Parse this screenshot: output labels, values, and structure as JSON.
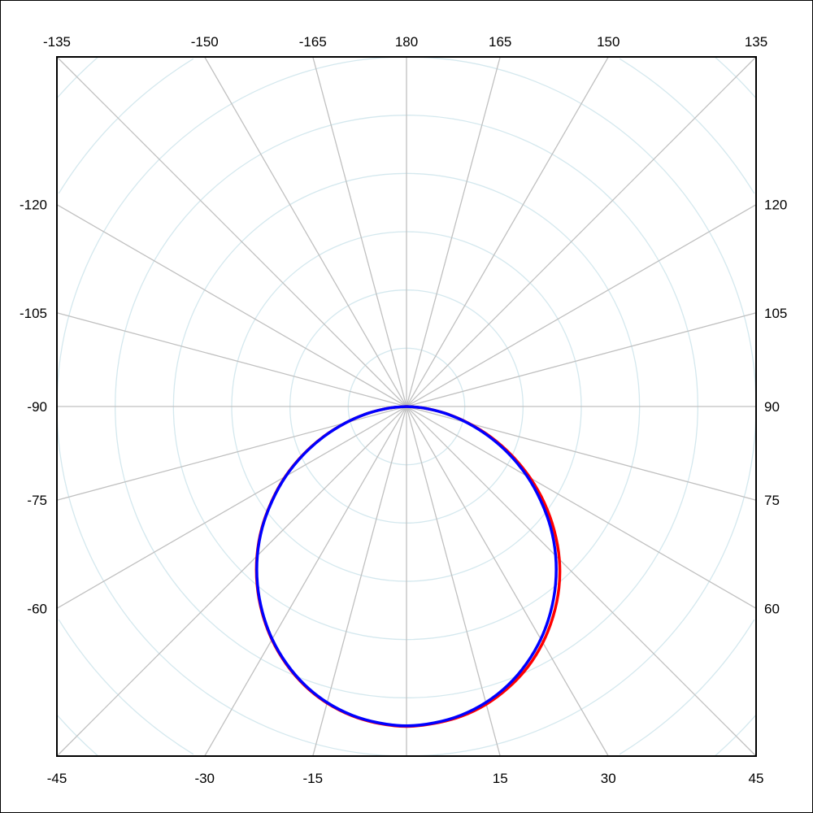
{
  "chart_data": {
    "type": "line",
    "subtype": "polar",
    "title": "",
    "angle_zero": "bottom",
    "angle_direction": "counterclockwise to the right (90 at right, -90 at left, 180 at top)",
    "angle_step": 15,
    "angle_tick_labels": {
      "top": [
        "-135",
        "-150",
        "-165",
        "180",
        "165",
        "150",
        "135"
      ],
      "left": [
        "-120",
        "-105",
        "-90",
        "-75",
        "-60"
      ],
      "right": [
        "120",
        "105",
        "90",
        "75",
        "60"
      ],
      "bottom": [
        "-45",
        "-30",
        "-15",
        "15",
        "30",
        "45"
      ]
    },
    "radial_range": [
      0,
      6
    ],
    "radial_grid_step": 1,
    "radial_tick_labels": false,
    "grid": true,
    "colors": {
      "angular_grid": "#c0c0c0",
      "radial_grid": "#d4e8ee",
      "frame": "#000000"
    },
    "angles": [
      -90,
      -85,
      -80,
      -75,
      -70,
      -65,
      -60,
      -55,
      -50,
      -45,
      -40,
      -35,
      -30,
      -25,
      -20,
      -15,
      -10,
      -5,
      0,
      5,
      10,
      15,
      20,
      25,
      30,
      35,
      40,
      45,
      50,
      55,
      60,
      65,
      70,
      75,
      80,
      85,
      90
    ],
    "series": [
      {
        "color": "#ff0000",
        "values": [
          0,
          0.29,
          0.67,
          1.08,
          1.52,
          1.96,
          2.4,
          2.82,
          3.24,
          3.63,
          3.99,
          4.32,
          4.62,
          4.88,
          5.1,
          5.27,
          5.39,
          5.46,
          5.49,
          5.46,
          5.4,
          5.29,
          5.13,
          4.93,
          4.68,
          4.39,
          4.07,
          3.71,
          3.31,
          2.89,
          2.45,
          2.0,
          1.55,
          1.1,
          0.68,
          0.29,
          0
        ]
      },
      {
        "color": "#0000ff",
        "values": [
          0,
          0.29,
          0.67,
          1.08,
          1.51,
          1.95,
          2.39,
          2.81,
          3.23,
          3.62,
          3.98,
          4.31,
          4.61,
          4.87,
          5.09,
          5.26,
          5.38,
          5.45,
          5.48,
          5.45,
          5.38,
          5.26,
          5.09,
          4.87,
          4.61,
          4.31,
          3.98,
          3.62,
          3.23,
          2.81,
          2.39,
          1.95,
          1.51,
          1.08,
          0.67,
          0.29,
          0
        ]
      }
    ]
  }
}
